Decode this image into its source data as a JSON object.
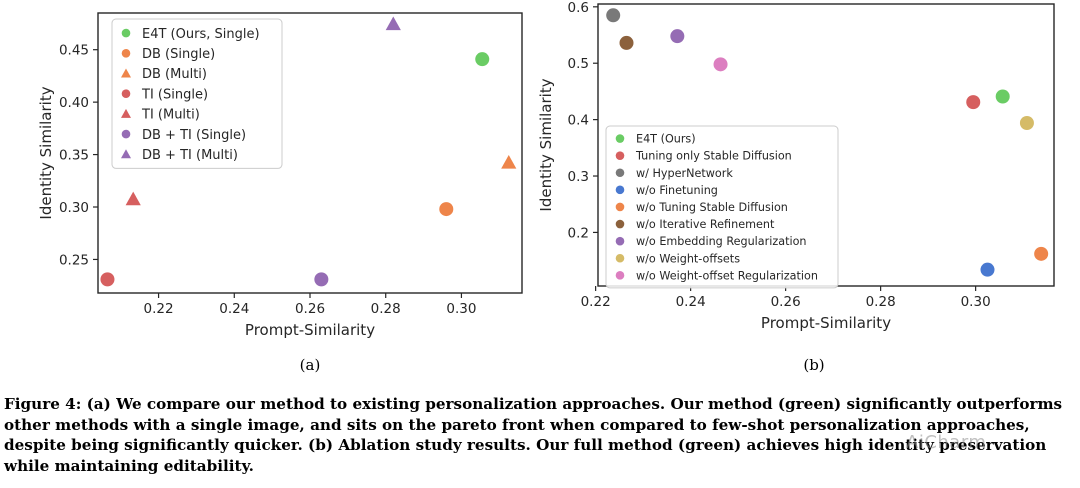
{
  "chart_data": [
    {
      "type": "scatter",
      "panel_label": "(a)",
      "xlabel": "Prompt-Similarity",
      "ylabel": "Identity Similarity",
      "xlim": [
        0.204,
        0.316
      ],
      "ylim": [
        0.218,
        0.485
      ],
      "xticks": [
        "0.22",
        "0.24",
        "0.26",
        "0.28",
        "0.30"
      ],
      "yticks": [
        "0.25",
        "0.30",
        "0.35",
        "0.40",
        "0.45"
      ],
      "legend_position": "top-left",
      "series": [
        {
          "name": "E4T (Ours, Single)",
          "color": "#6acc64",
          "marker": "circle",
          "points": [
            {
              "x": 0.3055,
              "y": 0.441
            }
          ]
        },
        {
          "name": "DB (Single)",
          "color": "#ee854a",
          "marker": "circle",
          "points": [
            {
              "x": 0.296,
              "y": 0.298
            }
          ]
        },
        {
          "name": "DB (Multi)",
          "color": "#ee854a",
          "marker": "triangle",
          "points": [
            {
              "x": 0.3125,
              "y": 0.342
            }
          ]
        },
        {
          "name": "TI (Single)",
          "color": "#d65f5f",
          "marker": "circle",
          "points": [
            {
              "x": 0.2065,
              "y": 0.231
            }
          ]
        },
        {
          "name": "TI (Multi)",
          "color": "#d65f5f",
          "marker": "triangle",
          "points": [
            {
              "x": 0.2133,
              "y": 0.307
            }
          ]
        },
        {
          "name": "DB + TI (Single)",
          "color": "#956cb4",
          "marker": "circle",
          "points": [
            {
              "x": 0.263,
              "y": 0.231
            }
          ]
        },
        {
          "name": "DB + TI (Multi)",
          "color": "#956cb4",
          "marker": "triangle",
          "points": [
            {
              "x": 0.282,
              "y": 0.474
            }
          ]
        }
      ]
    },
    {
      "type": "scatter",
      "panel_label": "(b)",
      "xlabel": "Prompt-Similarity",
      "ylabel": "Identity Similarity",
      "xlim": [
        0.2205,
        0.3165
      ],
      "ylim": [
        0.105,
        0.605
      ],
      "xticks": [
        "0.22",
        "0.24",
        "0.26",
        "0.28",
        "0.30"
      ],
      "yticks": [
        "0.2",
        "0.3",
        "0.4",
        "0.5",
        "0.6"
      ],
      "legend_position": "bottom-left",
      "series": [
        {
          "name": "E4T (Ours)",
          "color": "#6acc64",
          "marker": "circle",
          "points": [
            {
              "x": 0.3057,
              "y": 0.441
            }
          ]
        },
        {
          "name": "Tuning only Stable Diffusion",
          "color": "#d65f5f",
          "marker": "circle",
          "points": [
            {
              "x": 0.2995,
              "y": 0.431
            }
          ]
        },
        {
          "name": "w/ HyperNetwork",
          "color": "#797979",
          "marker": "circle",
          "points": [
            {
              "x": 0.2237,
              "y": 0.585
            }
          ]
        },
        {
          "name": "w/o Finetuning",
          "color": "#4878d0",
          "marker": "circle",
          "points": [
            {
              "x": 0.3025,
              "y": 0.134
            }
          ]
        },
        {
          "name": "w/o Tuning Stable Diffusion",
          "color": "#ee854a",
          "marker": "circle",
          "points": [
            {
              "x": 0.3138,
              "y": 0.162
            }
          ]
        },
        {
          "name": "w/o Iterative Refinement",
          "color": "#8c613c",
          "marker": "circle",
          "points": [
            {
              "x": 0.2265,
              "y": 0.536
            }
          ]
        },
        {
          "name": "w/o Embedding Regularization",
          "color": "#956cb4",
          "marker": "circle",
          "points": [
            {
              "x": 0.2372,
              "y": 0.548
            }
          ]
        },
        {
          "name": "w/o Weight-offsets",
          "color": "#d5bb67",
          "marker": "circle",
          "points": [
            {
              "x": 0.3108,
              "y": 0.394
            }
          ]
        },
        {
          "name": "w/o Weight-offset Regularization",
          "color": "#dc7ec0",
          "marker": "circle",
          "points": [
            {
              "x": 0.2463,
              "y": 0.498
            }
          ]
        }
      ]
    }
  ],
  "caption": "Figure 4: (a) We compare our method to existing personalization approaches. Our method (green) significantly outperforms other methods with a single image, and sits on the pareto front when compared to few-shot personalization approaches, despite being significantly quicker. (b) Ablation study results. Our full method (green) achieves high identity preservation while maintaining editability.",
  "watermark": "AiCharm"
}
